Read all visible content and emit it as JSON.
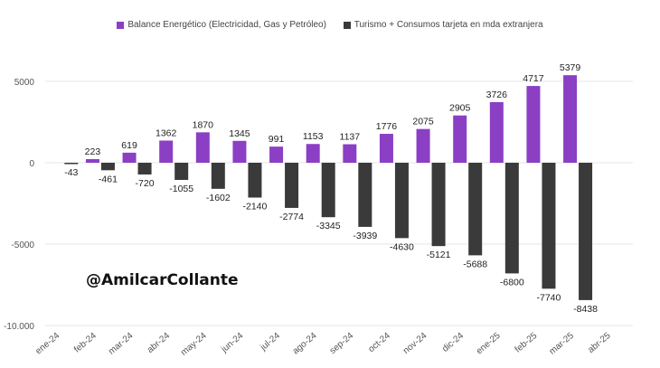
{
  "chart_data": {
    "type": "bar",
    "categories": [
      "ene-24",
      "feb-24",
      "mar-24",
      "abr-24",
      "may-24",
      "jun-24",
      "jul-24",
      "ago-24",
      "sep-24",
      "oct-24",
      "nov-24",
      "dic-24",
      "ene-25",
      "feb-25",
      "mar-25",
      "abr-25"
    ],
    "series": [
      {
        "name": "Balance Energético (Electricidad, Gas y Petróleo)",
        "color": "#8b3fc4",
        "values": [
          null,
          223,
          619,
          1362,
          1870,
          1345,
          991,
          1153,
          1137,
          1776,
          2075,
          2905,
          3726,
          4717,
          5379,
          null
        ],
        "labels": [
          "",
          "223",
          "619",
          "1362",
          "1870",
          "1345",
          "991",
          "1153",
          "1137",
          "1776",
          "2075",
          "2905",
          "3726",
          "4717",
          "5379",
          ""
        ]
      },
      {
        "name": "Turismo + Consumos tarjeta en mda extranjera",
        "color": "#3a3a3a",
        "values": [
          -43,
          -461,
          -720,
          -1055,
          -1602,
          -2140,
          -2774,
          -3345,
          -3939,
          -4630,
          -5121,
          -5688,
          -6800,
          -7740,
          -8438,
          null
        ],
        "labels": [
          "-43",
          "-461",
          "-720",
          "-1055",
          "-1602",
          "-2140",
          "-2774",
          "-3345",
          "-3939",
          "-4630",
          "-5121",
          "-5688",
          "-6800",
          "-7740",
          "-8438",
          ""
        ]
      }
    ],
    "y_ticks": [
      {
        "value": 5000,
        "label": "5000"
      },
      {
        "value": 0,
        "label": "0"
      },
      {
        "value": -5000,
        "label": "-5000"
      },
      {
        "value": -10000,
        "label": "-10.000"
      }
    ],
    "ylim": [
      -10000,
      6000
    ],
    "grid": true,
    "legend_position": "top"
  },
  "watermark": "@AmilcarCollante"
}
